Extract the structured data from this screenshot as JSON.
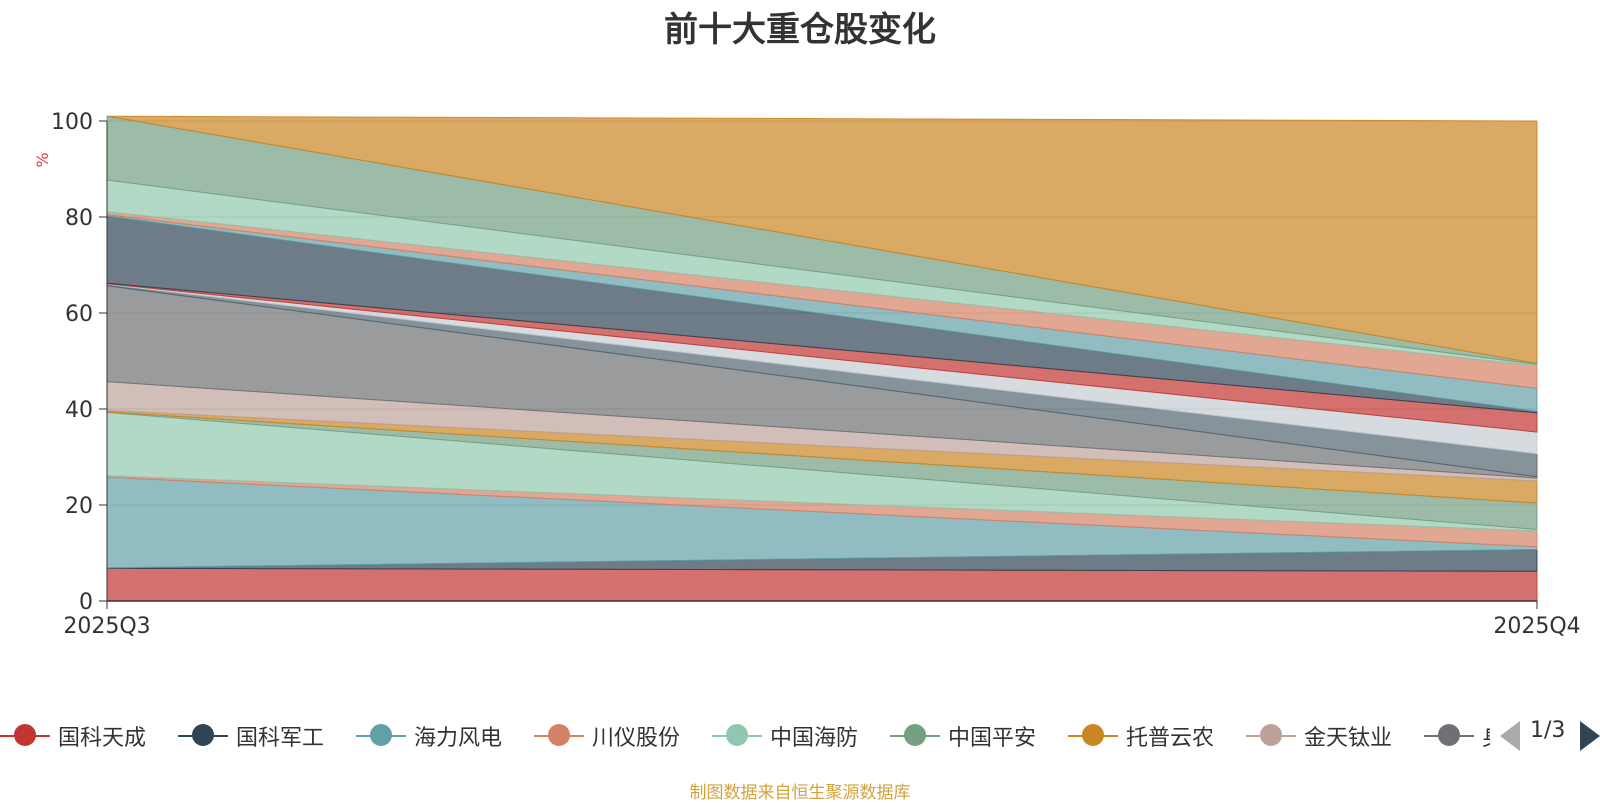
{
  "chart_data": {
    "type": "area",
    "stacked": true,
    "title": "前十大重仓股变化",
    "ylabel": "%",
    "ylim": [
      0,
      100
    ],
    "yticks": [
      0,
      20,
      40,
      60,
      80,
      100
    ],
    "categories": [
      "2025Q3",
      "2025Q4"
    ],
    "grid": true,
    "legend_position": "bottom",
    "series": [
      {
        "name": "国科天成",
        "values": [
          6.8,
          6.2
        ],
        "color": "#c23531"
      },
      {
        "name": "国科军工",
        "values": [
          0.1,
          4.5
        ],
        "color": "#2f4554"
      },
      {
        "name": "海力风电",
        "values": [
          18.9,
          0.6
        ],
        "color": "#61a0a8"
      },
      {
        "name": "川仪股份",
        "values": [
          0.3,
          3.3
        ],
        "color": "#d48265"
      },
      {
        "name": "中国海防",
        "values": [
          13.2,
          0.3
        ],
        "color": "#91c7ae"
      },
      {
        "name": "中国平安",
        "values": [
          0.1,
          5.5
        ],
        "color": "#749f83"
      },
      {
        "name": "托普云农",
        "values": [
          0.3,
          4.6
        ],
        "color": "#ca8622"
      },
      {
        "name": "金天钛业",
        "values": [
          6.0,
          0.6
        ],
        "color": "#bda29a"
      },
      {
        "name": "",
        "values": [
          20.0,
          0.3
        ],
        "color": "#6e7074"
      },
      {
        "name": "",
        "values": [
          0.3,
          4.8
        ],
        "color": "#546570"
      },
      {
        "name": "",
        "values": [
          0.1,
          4.5
        ],
        "color": "#c4ccd3"
      },
      {
        "name": "",
        "values": [
          0.1,
          4.0
        ],
        "color": "#c23531"
      },
      {
        "name": "",
        "values": [
          14.0,
          0.3
        ],
        "color": "#2f4554"
      },
      {
        "name": "",
        "values": [
          0.3,
          4.8
        ],
        "color": "#61a0a8"
      },
      {
        "name": "",
        "values": [
          0.6,
          4.7
        ],
        "color": "#d48265"
      },
      {
        "name": "",
        "values": [
          6.6,
          0.3
        ],
        "color": "#91c7ae"
      },
      {
        "name": "",
        "values": [
          13.3,
          0.2
        ],
        "color": "#749f83"
      },
      {
        "name": "",
        "values": [
          0.0,
          50.5
        ],
        "color": "#ca8622"
      }
    ]
  },
  "legend": {
    "items": [
      {
        "label": "国科天成",
        "color": "#c23531"
      },
      {
        "label": "国科军工",
        "color": "#2f4554"
      },
      {
        "label": "海力风电",
        "color": "#61a0a8"
      },
      {
        "label": "川仪股份",
        "color": "#d48265"
      },
      {
        "label": "中国海防",
        "color": "#91c7ae"
      },
      {
        "label": "中国平安",
        "color": "#749f83"
      },
      {
        "label": "托普云农",
        "color": "#ca8622"
      },
      {
        "label": "金天钛业",
        "color": "#bda29a"
      },
      {
        "label": "身",
        "color": "#6e7074"
      }
    ],
    "page_indicator": "1/3"
  },
  "source_note": "制图数据来自恒生聚源数据库"
}
